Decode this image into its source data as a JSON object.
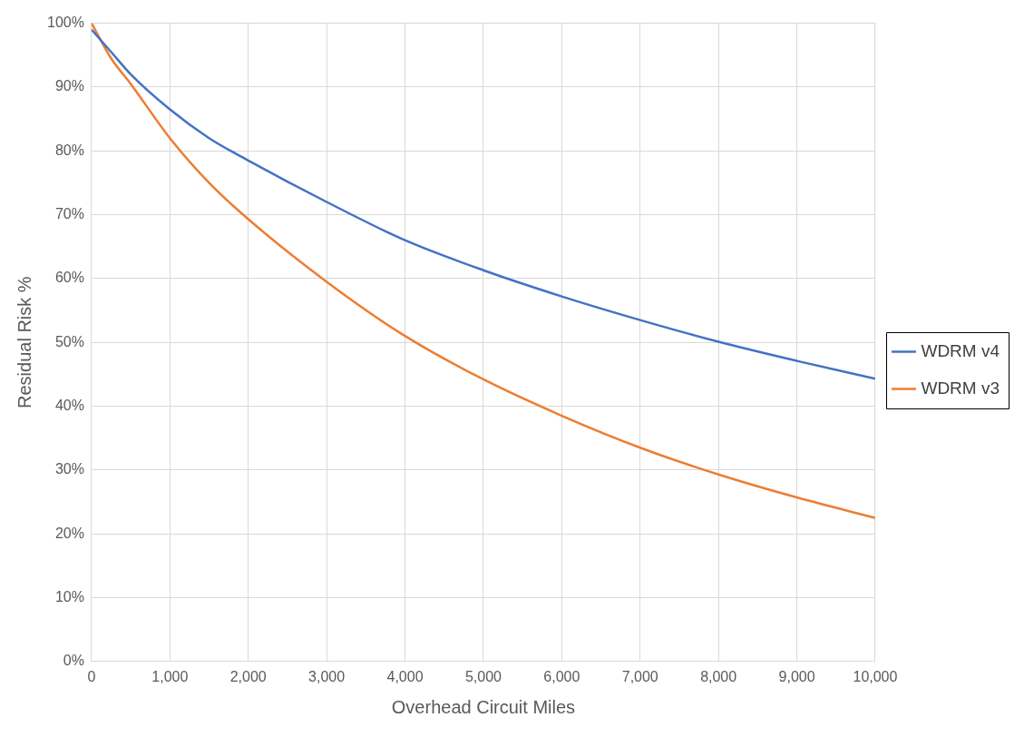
{
  "chart_data": {
    "type": "line",
    "xlabel": "Overhead Circuit Miles",
    "ylabel": "Residual Risk %",
    "xlim": [
      0,
      10000
    ],
    "xticks": [
      {
        "value": 0,
        "label": "0"
      },
      {
        "value": 1000,
        "label": "1,000"
      },
      {
        "value": 2000,
        "label": "2,000"
      },
      {
        "value": 3000,
        "label": "3,000"
      },
      {
        "value": 4000,
        "label": "4,000"
      },
      {
        "value": 5000,
        "label": "5,000"
      },
      {
        "value": 6000,
        "label": "6,000"
      },
      {
        "value": 7000,
        "label": "7,000"
      },
      {
        "value": 8000,
        "label": "8,000"
      },
      {
        "value": 9000,
        "label": "9,000"
      },
      {
        "value": 10000,
        "label": "10,000"
      }
    ],
    "ylim": [
      0,
      100
    ],
    "yticks": [
      {
        "value": 0,
        "label": "0%"
      },
      {
        "value": 10,
        "label": "10%"
      },
      {
        "value": 20,
        "label": "20%"
      },
      {
        "value": 30,
        "label": "30%"
      },
      {
        "value": 40,
        "label": "40%"
      },
      {
        "value": 50,
        "label": "50%"
      },
      {
        "value": 60,
        "label": "60%"
      },
      {
        "value": 70,
        "label": "70%"
      },
      {
        "value": 80,
        "label": "80%"
      },
      {
        "value": 90,
        "label": "90%"
      },
      {
        "value": 100,
        "label": "100%"
      }
    ],
    "x": [
      0,
      250,
      500,
      1000,
      1500,
      2000,
      3000,
      4000,
      5000,
      6000,
      7000,
      8000,
      9000,
      10000
    ],
    "series": [
      {
        "name": "WDRM v4",
        "color": "#4472c4",
        "values": [
          99,
          95.5,
          92,
          86.5,
          82,
          78.5,
          72,
          66,
          61.3,
          57.2,
          53.5,
          50.1,
          47.1,
          44.3
        ]
      },
      {
        "name": "WDRM v3",
        "color": "#ed7d31",
        "values": [
          100,
          94.5,
          90.5,
          82,
          75,
          69.3,
          59.5,
          51,
          44.2,
          38.5,
          33.5,
          29.3,
          25.7,
          22.5
        ]
      }
    ],
    "grid": true,
    "legend": "right",
    "marker": "none",
    "line_style": "solid"
  }
}
